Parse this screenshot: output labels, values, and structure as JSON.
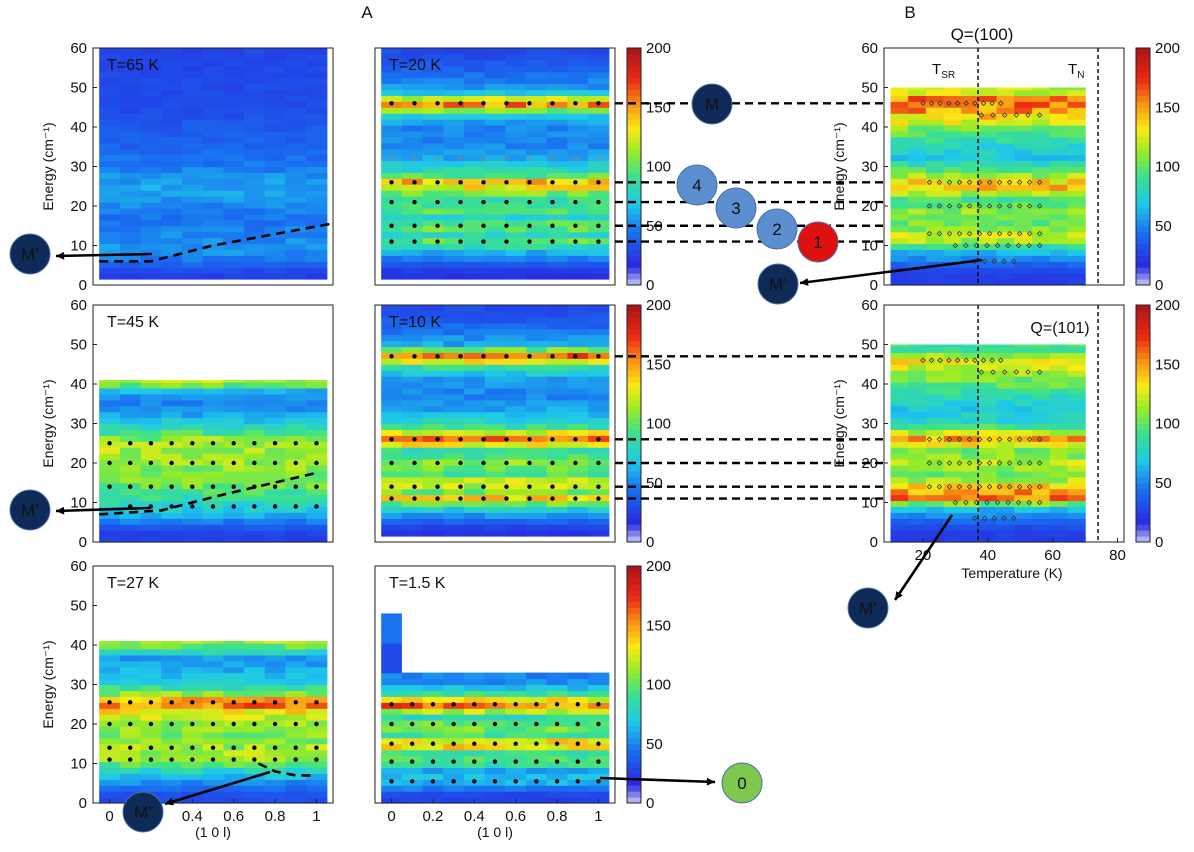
{
  "figure": {
    "label_a": "A",
    "label_b": "B"
  },
  "chart_data": [
    {
      "id": "t65",
      "type": "heatmap",
      "title": "T=65 K",
      "ylabel": "Energy (cm⁻¹)",
      "xlabel": "",
      "xlim": [
        -0.08,
        1.08
      ],
      "ylim": [
        0,
        60
      ],
      "yticks": [
        "0",
        "10",
        "20",
        "30",
        "40",
        "50",
        "60"
      ],
      "xticks": [],
      "data_region": [
        -0.05,
        1.05,
        1.5,
        60
      ],
      "has_colorbar": false,
      "bands": [
        {
          "e": 3,
          "v": 25
        },
        {
          "e": 6,
          "v": 45
        },
        {
          "e": 9,
          "v": 55
        },
        {
          "e": 13,
          "v": 50
        },
        {
          "e": 17,
          "v": 45
        },
        {
          "e": 20,
          "v": 50
        },
        {
          "e": 24,
          "v": 60
        },
        {
          "e": 27,
          "v": 55
        },
        {
          "e": 31,
          "v": 45
        },
        {
          "e": 35,
          "v": 40
        },
        {
          "e": 40,
          "v": 35
        },
        {
          "e": 45,
          "v": 30
        },
        {
          "e": 50,
          "v": 30
        },
        {
          "e": 55,
          "v": 28
        }
      ],
      "dots": [],
      "dashed": [
        [
          -0.05,
          6
        ],
        [
          0.2,
          6
        ],
        [
          0.5,
          10
        ],
        [
          1.07,
          15.5
        ]
      ]
    },
    {
      "id": "t20",
      "type": "heatmap",
      "title": "T=20 K",
      "ylabel": "",
      "xlabel": "",
      "xlim": [
        -0.08,
        1.08
      ],
      "ylim": [
        0,
        60
      ],
      "yticks": [],
      "xticks": [],
      "data_region": [
        -0.05,
        1.05,
        1.5,
        60
      ],
      "has_colorbar": true,
      "cbar_ticks": [
        "0",
        "50",
        "100",
        "150",
        "200"
      ],
      "bands": [
        {
          "e": 3,
          "v": 20
        },
        {
          "e": 6,
          "v": 40
        },
        {
          "e": 9,
          "v": 70
        },
        {
          "e": 11,
          "v": 100
        },
        {
          "e": 13,
          "v": 80
        },
        {
          "e": 15,
          "v": 110
        },
        {
          "e": 17,
          "v": 70
        },
        {
          "e": 19,
          "v": 100
        },
        {
          "e": 21,
          "v": 80
        },
        {
          "e": 23,
          "v": 100
        },
        {
          "e": 26,
          "v": 150
        },
        {
          "e": 28,
          "v": 90
        },
        {
          "e": 32,
          "v": 60
        },
        {
          "e": 36,
          "v": 50
        },
        {
          "e": 40,
          "v": 50
        },
        {
          "e": 43,
          "v": 70
        },
        {
          "e": 46,
          "v": 160
        },
        {
          "e": 49,
          "v": 60
        },
        {
          "e": 54,
          "v": 40
        },
        {
          "e": 58,
          "v": 30
        }
      ],
      "dots": [
        {
          "e": 46,
          "x0": 0.0,
          "x1": 1.0,
          "n": 10
        },
        {
          "e": 26,
          "x0": 0.0,
          "x1": 1.0,
          "n": 10
        },
        {
          "e": 21,
          "x0": 0.0,
          "x1": 1.0,
          "n": 10
        },
        {
          "e": 15,
          "x0": 0.0,
          "x1": 1.0,
          "n": 10
        },
        {
          "e": 11,
          "x0": 0.0,
          "x1": 1.0,
          "n": 10
        }
      ],
      "diamonds": [
        {
          "e": 32,
          "x0": 0.0,
          "x1": 1.0,
          "n": 10
        }
      ],
      "dashed": []
    },
    {
      "id": "t45",
      "type": "heatmap",
      "title": "T=45 K",
      "ylabel": "Energy (cm⁻¹)",
      "xlabel": "",
      "xlim": [
        -0.08,
        1.08
      ],
      "ylim": [
        0,
        60
      ],
      "yticks": [
        "0",
        "10",
        "20",
        "30",
        "40",
        "50",
        "60"
      ],
      "xticks": [],
      "data_region": [
        -0.05,
        1.05,
        0,
        41
      ],
      "has_colorbar": false,
      "bands": [
        {
          "e": 2,
          "v": 25
        },
        {
          "e": 5,
          "v": 45
        },
        {
          "e": 8,
          "v": 70
        },
        {
          "e": 11,
          "v": 85
        },
        {
          "e": 14,
          "v": 100
        },
        {
          "e": 17,
          "v": 105
        },
        {
          "e": 20,
          "v": 110
        },
        {
          "e": 23,
          "v": 115
        },
        {
          "e": 26,
          "v": 110
        },
        {
          "e": 29,
          "v": 80
        },
        {
          "e": 32,
          "v": 60
        },
        {
          "e": 35,
          "v": 50
        },
        {
          "e": 38,
          "v": 55
        },
        {
          "e": 40.5,
          "v": 120
        }
      ],
      "dots": [
        {
          "e": 25,
          "x0": 0.0,
          "x1": 1.0,
          "n": 11
        },
        {
          "e": 20,
          "x0": 0.0,
          "x1": 1.0,
          "n": 11
        },
        {
          "e": 14,
          "x0": 0.0,
          "x1": 1.0,
          "n": 11
        },
        {
          "e": 9,
          "x0": 0.1,
          "x1": 1.0,
          "n": 10
        }
      ],
      "dashed": [
        [
          -0.05,
          7
        ],
        [
          0.25,
          8
        ],
        [
          0.55,
          12
        ],
        [
          1.0,
          17.5
        ]
      ]
    },
    {
      "id": "t10",
      "type": "heatmap",
      "title": "T=10 K",
      "ylabel": "",
      "xlabel": "",
      "xlim": [
        -0.08,
        1.08
      ],
      "ylim": [
        0,
        60
      ],
      "yticks": [],
      "xticks": [],
      "data_region": [
        -0.05,
        1.05,
        1.5,
        60
      ],
      "has_colorbar": true,
      "cbar_ticks": [
        "0",
        "50",
        "100",
        "150",
        "200"
      ],
      "bands": [
        {
          "e": 3,
          "v": 20
        },
        {
          "e": 6,
          "v": 45
        },
        {
          "e": 9,
          "v": 80
        },
        {
          "e": 11,
          "v": 140
        },
        {
          "e": 13,
          "v": 100
        },
        {
          "e": 15,
          "v": 130
        },
        {
          "e": 17.5,
          "v": 90
        },
        {
          "e": 20,
          "v": 110
        },
        {
          "e": 23,
          "v": 80
        },
        {
          "e": 26,
          "v": 170
        },
        {
          "e": 29,
          "v": 90
        },
        {
          "e": 33,
          "v": 60
        },
        {
          "e": 37,
          "v": 50
        },
        {
          "e": 41,
          "v": 55
        },
        {
          "e": 44,
          "v": 80
        },
        {
          "e": 47,
          "v": 165
        },
        {
          "e": 50,
          "v": 60
        },
        {
          "e": 55,
          "v": 40
        },
        {
          "e": 58,
          "v": 30
        }
      ],
      "dots": [
        {
          "e": 47,
          "x0": 0.0,
          "x1": 1.0,
          "n": 10
        },
        {
          "e": 26,
          "x0": 0.0,
          "x1": 1.0,
          "n": 10
        },
        {
          "e": 20,
          "x0": 0.0,
          "x1": 1.0,
          "n": 10
        },
        {
          "e": 14,
          "x0": 0.0,
          "x1": 1.0,
          "n": 10
        },
        {
          "e": 11,
          "x0": 0.0,
          "x1": 1.0,
          "n": 10
        }
      ],
      "dashed": []
    },
    {
      "id": "t27",
      "type": "heatmap",
      "title": "T=27 K",
      "ylabel": "Energy (cm⁻¹)",
      "xlabel": "(1 0 l)",
      "xlim": [
        -0.08,
        1.08
      ],
      "ylim": [
        0,
        60
      ],
      "yticks": [
        "0",
        "10",
        "20",
        "30",
        "40",
        "50",
        "60"
      ],
      "xticks": [
        "0",
        "0.2",
        "0.4",
        "0.6",
        "0.8",
        "1"
      ],
      "data_region": [
        -0.05,
        1.05,
        0,
        41
      ],
      "has_colorbar": false,
      "bands": [
        {
          "e": 2,
          "v": 30
        },
        {
          "e": 5,
          "v": 50
        },
        {
          "e": 8,
          "v": 75
        },
        {
          "e": 11,
          "v": 110
        },
        {
          "e": 14,
          "v": 115
        },
        {
          "e": 17,
          "v": 105
        },
        {
          "e": 20,
          "v": 110
        },
        {
          "e": 23,
          "v": 130
        },
        {
          "e": 25.5,
          "v": 165
        },
        {
          "e": 28,
          "v": 100
        },
        {
          "e": 31,
          "v": 70
        },
        {
          "e": 34,
          "v": 60
        },
        {
          "e": 37,
          "v": 55
        },
        {
          "e": 40.5,
          "v": 115
        }
      ],
      "dots": [
        {
          "e": 25.5,
          "x0": 0.0,
          "x1": 1.0,
          "n": 11
        },
        {
          "e": 20,
          "x0": 0.0,
          "x1": 1.0,
          "n": 11
        },
        {
          "e": 14,
          "x0": 0.0,
          "x1": 1.0,
          "n": 11
        },
        {
          "e": 11,
          "x0": 0.0,
          "x1": 1.0,
          "n": 11
        }
      ],
      "dashed": [
        [
          0.72,
          10
        ],
        [
          0.8,
          8
        ],
        [
          0.9,
          7
        ],
        [
          1.0,
          7
        ]
      ]
    },
    {
      "id": "t15",
      "type": "heatmap",
      "title": "T=1.5 K",
      "ylabel": "",
      "xlabel": "(1 0 l)",
      "xlim": [
        -0.08,
        1.08
      ],
      "ylim": [
        0,
        60
      ],
      "yticks": [],
      "xticks": [
        "0",
        "0.2",
        "0.4",
        "0.6",
        "0.8",
        "1"
      ],
      "data_region": [
        -0.05,
        1.05,
        0,
        33
      ],
      "has_colorbar": true,
      "cbar_ticks": [
        "0",
        "50",
        "100",
        "150",
        "200"
      ],
      "bands": [
        {
          "e": 2,
          "v": 25
        },
        {
          "e": 4,
          "v": 50
        },
        {
          "e": 6,
          "v": 70
        },
        {
          "e": 8,
          "v": 55
        },
        {
          "e": 10.5,
          "v": 100
        },
        {
          "e": 12.5,
          "v": 80
        },
        {
          "e": 15,
          "v": 155
        },
        {
          "e": 17,
          "v": 90
        },
        {
          "e": 19.5,
          "v": 110
        },
        {
          "e": 22,
          "v": 80
        },
        {
          "e": 25,
          "v": 165
        },
        {
          "e": 28,
          "v": 80
        },
        {
          "e": 31,
          "v": 50
        }
      ],
      "dots": [
        {
          "e": 25,
          "x0": 0.0,
          "x1": 1.0,
          "n": 11
        },
        {
          "e": 20,
          "x0": 0.0,
          "x1": 1.0,
          "n": 11
        },
        {
          "e": 15,
          "x0": 0.0,
          "x1": 1.0,
          "n": 11
        },
        {
          "e": 10.5,
          "x0": 0.0,
          "x1": 1.0,
          "n": 11
        },
        {
          "e": 5.5,
          "x0": 0.0,
          "x1": 1.0,
          "n": 11
        }
      ],
      "dashed": []
    },
    {
      "id": "q100",
      "type": "heatmap",
      "title": "Q=(100)",
      "ylabel": "Energy (cm⁻¹)",
      "xlabel": "",
      "xlim": [
        8,
        82
      ],
      "ylim": [
        0,
        60
      ],
      "yticks": [
        "0",
        "10",
        "20",
        "30",
        "40",
        "50",
        "60"
      ],
      "xticks": [],
      "data_region": [
        10,
        70,
        0,
        50
      ],
      "has_colorbar": true,
      "cbar_ticks": [
        "0",
        "50",
        "100",
        "150",
        "200"
      ],
      "t_sr_label": "T",
      "t_sr_sub": "SR",
      "t_sr": 37,
      "t_n_label": "T",
      "t_n_sub": "N",
      "t_n": 74,
      "bands": [
        {
          "e": 3,
          "v": 25
        },
        {
          "e": 6,
          "v": 45
        },
        {
          "e": 9,
          "v": 70
        },
        {
          "e": 12,
          "v": 130
        },
        {
          "e": 15,
          "v": 100
        },
        {
          "e": 19,
          "v": 110
        },
        {
          "e": 22,
          "v": 90
        },
        {
          "e": 25,
          "v": 150
        },
        {
          "e": 28,
          "v": 110
        },
        {
          "e": 32,
          "v": 70
        },
        {
          "e": 36,
          "v": 80
        },
        {
          "e": 40,
          "v": 110
        },
        {
          "e": 44,
          "v": 150
        },
        {
          "e": 47,
          "v": 160
        },
        {
          "e": 49,
          "v": 120
        }
      ],
      "dots": [
        {
          "e": 46,
          "x0": 20,
          "x1": 44,
          "n": 10
        },
        {
          "e": 43,
          "x0": 38,
          "x1": 56,
          "n": 6
        },
        {
          "e": 26,
          "x0": 22,
          "x1": 56,
          "n": 12
        },
        {
          "e": 20,
          "x0": 22,
          "x1": 56,
          "n": 12
        },
        {
          "e": 13,
          "x0": 22,
          "x1": 56,
          "n": 12
        },
        {
          "e": 10,
          "x0": 30,
          "x1": 56,
          "n": 9
        },
        {
          "e": 6,
          "x0": 36,
          "x1": 48,
          "n": 5
        }
      ],
      "dashed": []
    },
    {
      "id": "q101",
      "type": "heatmap",
      "title": "Q=(101)",
      "ylabel": "Energy (cm⁻¹)",
      "xlabel": "Temperature (K)",
      "xlim": [
        8,
        82
      ],
      "ylim": [
        0,
        60
      ],
      "yticks": [
        "0",
        "10",
        "20",
        "30",
        "40",
        "50",
        "60"
      ],
      "xticks": [
        "20",
        "40",
        "60",
        "80"
      ],
      "data_region": [
        10,
        70,
        0,
        50
      ],
      "has_colorbar": true,
      "cbar_ticks": [
        "0",
        "50",
        "100",
        "150",
        "200"
      ],
      "t_sr": 37,
      "t_n": 74,
      "bands": [
        {
          "e": 3,
          "v": 25
        },
        {
          "e": 6,
          "v": 45
        },
        {
          "e": 9,
          "v": 70
        },
        {
          "e": 11,
          "v": 160
        },
        {
          "e": 14,
          "v": 140
        },
        {
          "e": 17,
          "v": 100
        },
        {
          "e": 20,
          "v": 120
        },
        {
          "e": 23,
          "v": 100
        },
        {
          "e": 26,
          "v": 150
        },
        {
          "e": 30,
          "v": 80
        },
        {
          "e": 34,
          "v": 70
        },
        {
          "e": 38,
          "v": 90
        },
        {
          "e": 42,
          "v": 110
        },
        {
          "e": 46,
          "v": 130
        },
        {
          "e": 49,
          "v": 90
        }
      ],
      "dots": [
        {
          "e": 46,
          "x0": 20,
          "x1": 44,
          "n": 10
        },
        {
          "e": 43,
          "x0": 38,
          "x1": 56,
          "n": 6
        },
        {
          "e": 26,
          "x0": 22,
          "x1": 56,
          "n": 12
        },
        {
          "e": 20,
          "x0": 22,
          "x1": 56,
          "n": 12
        },
        {
          "e": 14,
          "x0": 22,
          "x1": 56,
          "n": 12
        },
        {
          "e": 10,
          "x0": 30,
          "x1": 56,
          "n": 9
        },
        {
          "e": 6,
          "x0": 36,
          "x1": 48,
          "n": 5
        }
      ],
      "dashed": []
    }
  ],
  "annotations": {
    "m_label": "M",
    "mprime_label": "M’",
    "numbered": [
      "4",
      "3",
      "2",
      "1"
    ],
    "zero": "0"
  },
  "colors": {
    "dark_navy": "#0f2a57",
    "light_blue": "#5b8fcf",
    "red": "#e01010",
    "green": "#7ec850"
  }
}
